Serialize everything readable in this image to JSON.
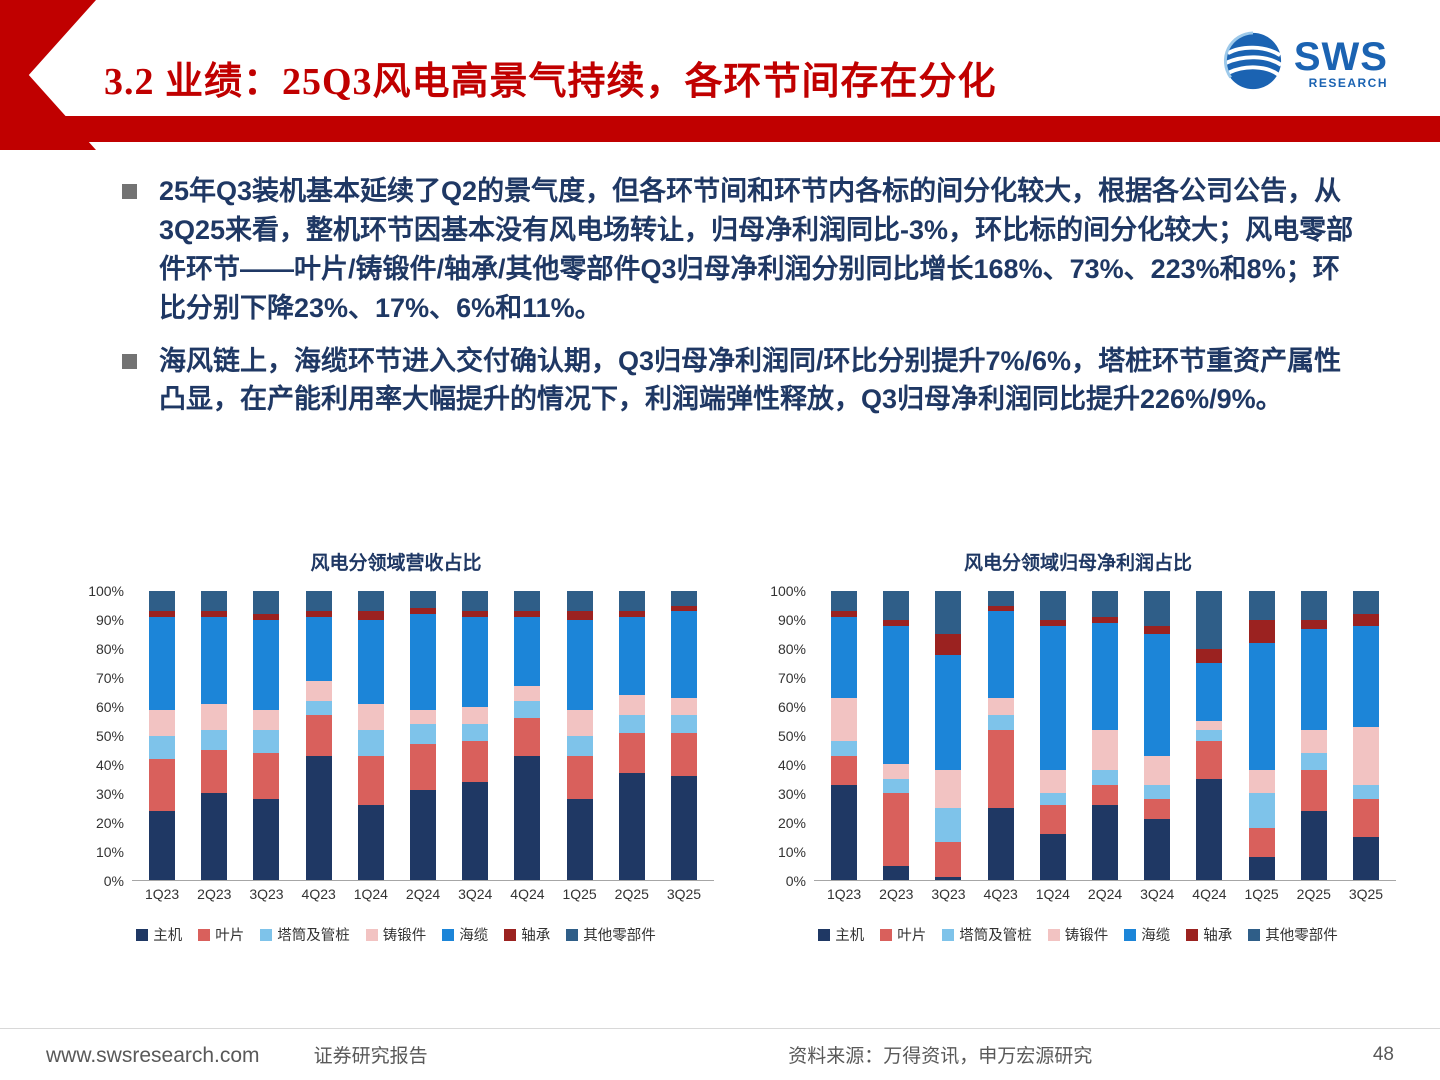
{
  "header": {
    "title": "3.2 业绩：25Q3风电高景气持续，各环节间存在分化"
  },
  "logo": {
    "brand": "SWS",
    "sub": "RESEARCH"
  },
  "colors": {
    "accent_red": "#C00000",
    "text_navy": "#1F3864",
    "logo_blue": "#1B63B2"
  },
  "bullets": [
    "25年Q3装机基本延续了Q2的景气度，但各环节间和环节内各标的间分化较大，根据各公司公告，从3Q25来看，整机环节因基本没有风电场转让，归母净利润同比-3%，环比标的间分化较大；风电零部件环节——叶片/铸锻件/轴承/其他零部件Q3归母净利润分别同比增长168%、73%、223%和8%；环比分别下降23%、17%、6%和11%。",
    "海风链上，海缆环节进入交付确认期，Q3归母净利润同/环比分别提升7%/6%，塔桩环节重资产属性凸显，在产能利用率大幅提升的情况下，利润端弹性释放，Q3归母净利润同比提升226%/9%。"
  ],
  "chart_data": [
    {
      "type": "bar",
      "stacked": true,
      "percent_stacked": true,
      "title": "风电分领域营收占比",
      "xlabel": "",
      "ylabel": "",
      "ylim": [
        0,
        100
      ],
      "grid": false,
      "legend_position": "bottom",
      "y_ticks": [
        "0%",
        "10%",
        "20%",
        "30%",
        "40%",
        "50%",
        "60%",
        "70%",
        "80%",
        "90%",
        "100%"
      ],
      "categories": [
        "1Q23",
        "2Q23",
        "3Q23",
        "4Q23",
        "1Q24",
        "2Q24",
        "3Q24",
        "4Q24",
        "1Q25",
        "2Q25",
        "3Q25"
      ],
      "series": [
        {
          "name": "主机",
          "color": "#1F3864",
          "values": [
            24,
            30,
            28,
            43,
            26,
            31,
            34,
            43,
            28,
            37,
            36
          ]
        },
        {
          "name": "叶片",
          "color": "#D9605C",
          "values": [
            18,
            15,
            16,
            14,
            17,
            16,
            14,
            13,
            15,
            14,
            15
          ]
        },
        {
          "name": "塔筒及管桩",
          "color": "#7EC3EA",
          "values": [
            8,
            7,
            8,
            5,
            9,
            7,
            6,
            6,
            7,
            6,
            6
          ]
        },
        {
          "name": "铸锻件",
          "color": "#F2C3C2",
          "values": [
            9,
            9,
            7,
            7,
            9,
            5,
            6,
            5,
            9,
            7,
            6
          ]
        },
        {
          "name": "海缆",
          "color": "#1C85D8",
          "values": [
            32,
            30,
            31,
            22,
            29,
            33,
            31,
            24,
            31,
            27,
            30
          ]
        },
        {
          "name": "轴承",
          "color": "#9B2220",
          "values": [
            2,
            2,
            2,
            2,
            3,
            2,
            2,
            2,
            3,
            2,
            2
          ]
        },
        {
          "name": "其他零部件",
          "color": "#2F5E88",
          "values": [
            7,
            7,
            8,
            7,
            7,
            6,
            7,
            7,
            7,
            7,
            5
          ]
        }
      ]
    },
    {
      "type": "bar",
      "stacked": true,
      "percent_stacked": true,
      "title": "风电分领域归母净利润占比",
      "xlabel": "",
      "ylabel": "",
      "ylim": [
        0,
        100
      ],
      "grid": false,
      "legend_position": "bottom",
      "y_ticks": [
        "0%",
        "10%",
        "20%",
        "30%",
        "40%",
        "50%",
        "60%",
        "70%",
        "80%",
        "90%",
        "100%"
      ],
      "categories": [
        "1Q23",
        "2Q23",
        "3Q23",
        "4Q23",
        "1Q24",
        "2Q24",
        "3Q24",
        "4Q24",
        "1Q25",
        "2Q25",
        "3Q25"
      ],
      "series": [
        {
          "name": "主机",
          "color": "#1F3864",
          "values": [
            33,
            5,
            1,
            25,
            16,
            26,
            21,
            35,
            8,
            24,
            15
          ]
        },
        {
          "name": "叶片",
          "color": "#D9605C",
          "values": [
            10,
            25,
            12,
            27,
            10,
            7,
            7,
            13,
            10,
            14,
            13
          ]
        },
        {
          "name": "塔筒及管桩",
          "color": "#7EC3EA",
          "values": [
            5,
            5,
            12,
            5,
            4,
            5,
            5,
            4,
            12,
            6,
            5
          ]
        },
        {
          "name": "铸锻件",
          "color": "#F2C3C2",
          "values": [
            15,
            5,
            13,
            6,
            8,
            14,
            10,
            3,
            8,
            8,
            20
          ]
        },
        {
          "name": "海缆",
          "color": "#1C85D8",
          "values": [
            28,
            48,
            40,
            30,
            50,
            37,
            42,
            20,
            44,
            35,
            35
          ]
        },
        {
          "name": "轴承",
          "color": "#9B2220",
          "values": [
            2,
            2,
            7,
            2,
            2,
            2,
            3,
            5,
            8,
            3,
            4
          ]
        },
        {
          "name": "其他零部件",
          "color": "#2F5E88",
          "values": [
            7,
            10,
            15,
            5,
            10,
            9,
            12,
            20,
            10,
            10,
            8
          ]
        }
      ]
    }
  ],
  "footer": {
    "url": "www.swsresearch.com",
    "label": "证券研究报告",
    "source": "资料来源：万得资讯，申万宏源研究",
    "page": "48"
  }
}
